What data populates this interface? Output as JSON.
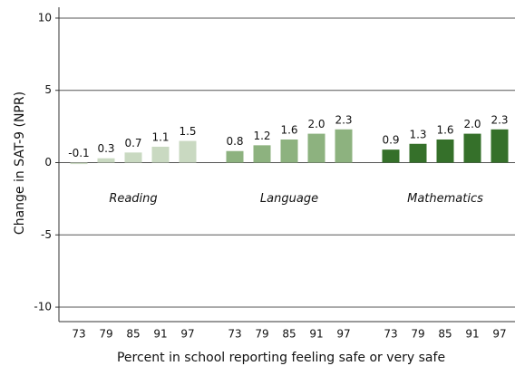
{
  "chart_data": {
    "type": "bar",
    "ylabel": "Change in SAT-9 (NPR)",
    "xlabel": "Percent in school reporting feeling safe or very safe",
    "categories": [
      "73",
      "79",
      "85",
      "91",
      "97"
    ],
    "series": [
      {
        "name": "Reading",
        "color": "#c9d9c1",
        "values": [
          -0.1,
          0.3,
          0.7,
          1.1,
          1.5
        ],
        "value_labels": [
          "-0.1",
          "0.3",
          "0.7",
          "1.1",
          "1.5"
        ]
      },
      {
        "name": "Language",
        "color": "#8db27f",
        "values": [
          0.8,
          1.2,
          1.6,
          2.0,
          2.3
        ],
        "value_labels": [
          "0.8",
          "1.2",
          "1.6",
          "2.0",
          "2.3"
        ]
      },
      {
        "name": "Mathematics",
        "color": "#35702a",
        "values": [
          0.9,
          1.3,
          1.6,
          2.0,
          2.3
        ],
        "value_labels": [
          "0.9",
          "1.3",
          "1.6",
          "2.0",
          "2.3"
        ]
      }
    ],
    "ylim": [
      -11,
      10.75
    ],
    "yticks": [
      -10,
      -5,
      0,
      5,
      10
    ],
    "grid": true
  }
}
